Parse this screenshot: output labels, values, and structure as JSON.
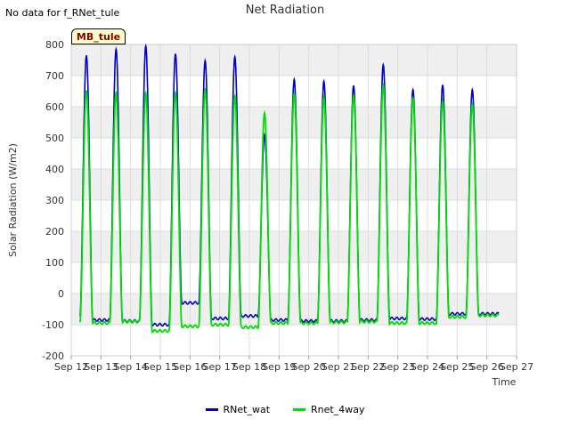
{
  "header": {
    "no_data_text": "No data for f_RNet_tule",
    "site_badge": "MB_tule"
  },
  "chart_data": {
    "type": "line",
    "title": "Net Radiation",
    "xlabel": "Time",
    "ylabel": "Solar Radiation (W/m2)",
    "ylim": [
      -200,
      800
    ],
    "yticks": [
      -200,
      -100,
      0,
      100,
      200,
      300,
      400,
      500,
      600,
      700,
      800
    ],
    "xlim": [
      12,
      27
    ],
    "xticks": [
      12,
      13,
      14,
      15,
      16,
      17,
      18,
      19,
      20,
      21,
      22,
      23,
      24,
      25,
      26,
      27
    ],
    "xtick_labels": [
      "Sep 12",
      "Sep 13",
      "Sep 14",
      "Sep 15",
      "Sep 16",
      "Sep 17",
      "Sep 18",
      "Sep 19",
      "Sep 20",
      "Sep 21",
      "Sep 22",
      "Sep 23",
      "Sep 24",
      "Sep 25",
      "Sep 26",
      "Sep 27"
    ],
    "data_start_day": 12.3,
    "data_end_day": 26.4,
    "series": [
      {
        "name": "RNet_wat",
        "color": "#0000cc",
        "daily_peaks": [
          765,
          785,
          795,
          770,
          748,
          760,
          510,
          688,
          682,
          668,
          735,
          655,
          670,
          655
        ],
        "night_values": [
          -72,
          -85,
          -88,
          -100,
          -30,
          -80,
          -72,
          -85,
          -88,
          -88,
          -85,
          -80,
          -82,
          -65,
          -65
        ]
      },
      {
        "name": "Rnet_4way",
        "color": "#00e000",
        "daily_peaks": [
          652,
          645,
          645,
          645,
          655,
          635,
          580,
          642,
          630,
          635,
          670,
          628,
          618,
          608
        ],
        "night_values": [
          -92,
          -95,
          -90,
          -120,
          -105,
          -100,
          -108,
          -95,
          -95,
          -92,
          -90,
          -95,
          -95,
          -75,
          -70
        ]
      }
    ],
    "legend_position": "bottom-center",
    "background_bands": true
  }
}
